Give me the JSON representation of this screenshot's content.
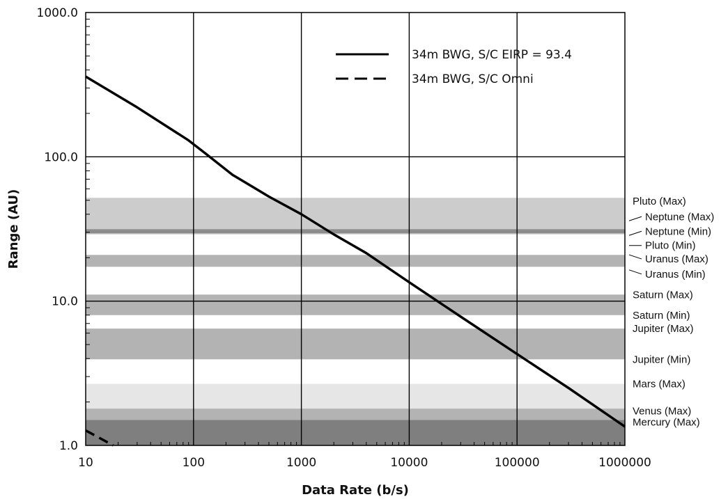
{
  "chart_data": {
    "type": "line",
    "xlabel": "Data Rate (b/s)",
    "ylabel": "Range (AU)",
    "x_scale": "log",
    "y_scale": "log",
    "xlim": [
      10,
      1000000
    ],
    "ylim": [
      1,
      1000
    ],
    "x_ticks": [
      10,
      100,
      1000,
      10000,
      100000,
      1000000
    ],
    "x_tick_labels": [
      "10",
      "100",
      "1000",
      "10000",
      "100000",
      "1000000"
    ],
    "y_ticks": [
      1,
      10,
      100,
      1000
    ],
    "y_tick_labels": [
      "1.0",
      "10.0",
      "100.0",
      "1000.0"
    ],
    "grid": true,
    "legend_position": "top-right",
    "series": [
      {
        "name": "34m BWG, S/C EIRP = 93.4",
        "style": "solid",
        "x": [
          10,
          30,
          90,
          130,
          230,
          500,
          1000,
          2000,
          4000,
          10000,
          30000,
          100000,
          300000,
          1000000
        ],
        "y": [
          360,
          220,
          130,
          105,
          75,
          53,
          40,
          29,
          21.5,
          13.5,
          7.8,
          4.3,
          2.5,
          1.35
        ]
      },
      {
        "name": "34m BWG, S/C Omni",
        "style": "dashed",
        "x": [
          10,
          18
        ],
        "y": [
          1.27,
          1.0
        ]
      }
    ],
    "bands": [
      {
        "low": 1.0,
        "high": 1.5,
        "color": "#7f7f7f"
      },
      {
        "low": 1.5,
        "high": 1.8,
        "color": "#b3b3b3"
      },
      {
        "low": 1.8,
        "high": 2.67,
        "color": "#e6e6e6"
      },
      {
        "low": 3.95,
        "high": 6.45,
        "color": "#b3b3b3"
      },
      {
        "low": 8.0,
        "high": 11.1,
        "color": "#b3b3b3"
      },
      {
        "low": 17.3,
        "high": 20.9,
        "color": "#b3b3b3"
      },
      {
        "low": 29.0,
        "high": 52.0,
        "color": "#cccccc"
      },
      {
        "low": 29.5,
        "high": 31.5,
        "color": "#8c8c8c"
      }
    ],
    "band_labels": [
      {
        "text": "Pluto (Max)",
        "value": 49.3
      },
      {
        "text": "Neptune (Max)",
        "value": 38.5,
        "leader": true
      },
      {
        "text": "Neptune (Min)",
        "value": 30.5,
        "leader": true
      },
      {
        "text": "Pluto (Min)",
        "value": 24.3,
        "leader": true
      },
      {
        "text": "Uranus (Max)",
        "value": 19.6,
        "leader": true
      },
      {
        "text": "Uranus (Min)",
        "value": 15.4,
        "leader": true
      },
      {
        "text": "Saturn (Max)",
        "value": 11.1
      },
      {
        "text": "Saturn (Min)",
        "value": 8.0
      },
      {
        "text": "Jupiter (Max)",
        "value": 6.45
      },
      {
        "text": "Jupiter (Min)",
        "value": 3.95
      },
      {
        "text": "Mars (Max)",
        "value": 2.67
      },
      {
        "text": "Venus (Max)",
        "value": 1.73
      },
      {
        "text": "Mercury (Max)",
        "value": 1.45
      }
    ]
  }
}
